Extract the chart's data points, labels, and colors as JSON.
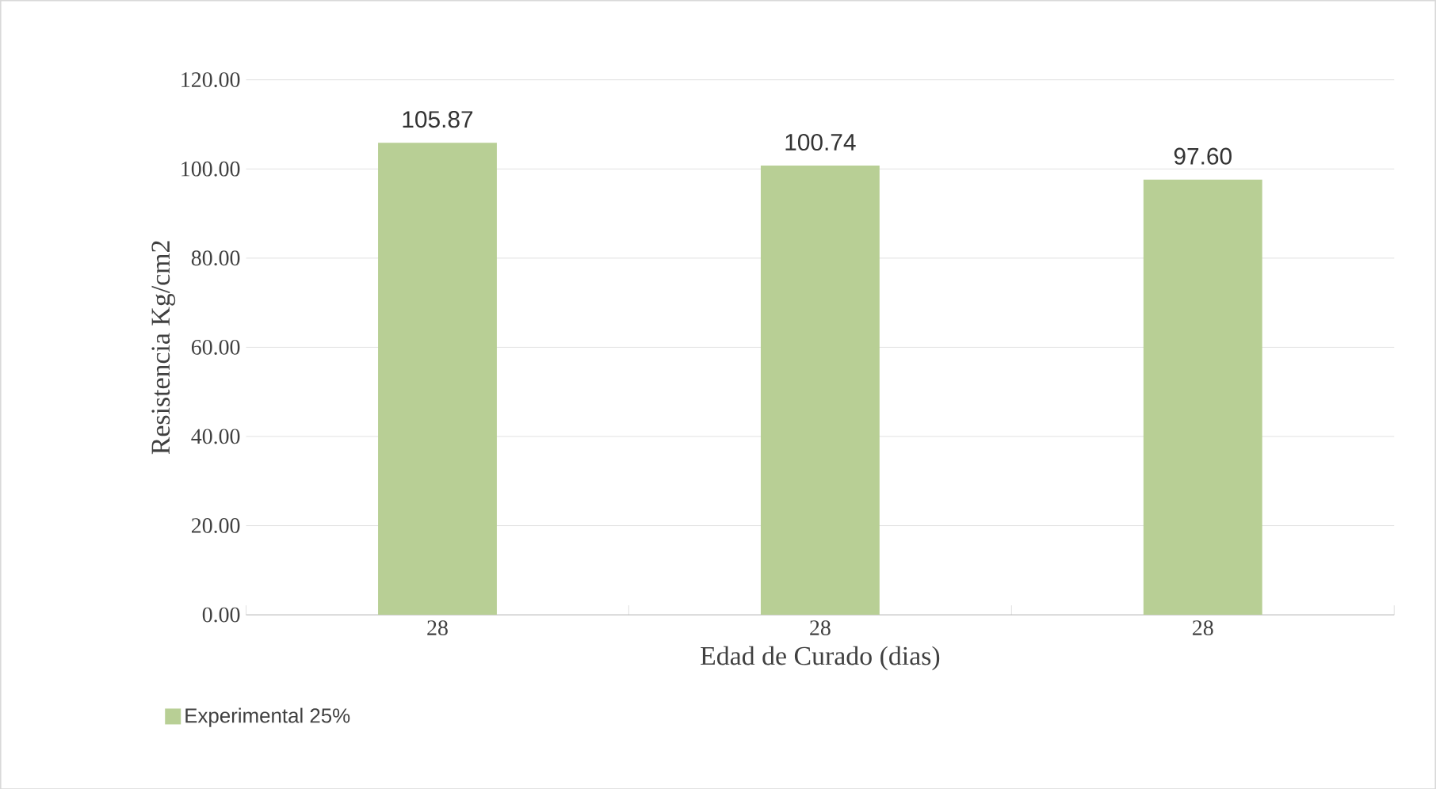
{
  "chart_data": {
    "type": "bar",
    "xlabel": "Edad de Curado (dias)",
    "ylabel": "Resistencia Kg/cm2",
    "categories": [
      "28",
      "28",
      "28"
    ],
    "series": [
      {
        "name": "Experimental 25%",
        "color": "#b8cf95",
        "values": [
          105.87,
          100.74,
          97.6
        ],
        "value_labels": [
          "105.87",
          "100.74",
          "97.60"
        ]
      }
    ],
    "ylim": [
      0,
      120
    ],
    "yticks": [
      {
        "value": 0,
        "label": "0.00"
      },
      {
        "value": 20,
        "label": "20.00"
      },
      {
        "value": 40,
        "label": "40.00"
      },
      {
        "value": 60,
        "label": "60.00"
      },
      {
        "value": 80,
        "label": "80.00"
      },
      {
        "value": 100,
        "label": "100.00"
      },
      {
        "value": 120,
        "label": "120.00"
      }
    ],
    "grid": "y",
    "legend": "bottom left"
  }
}
